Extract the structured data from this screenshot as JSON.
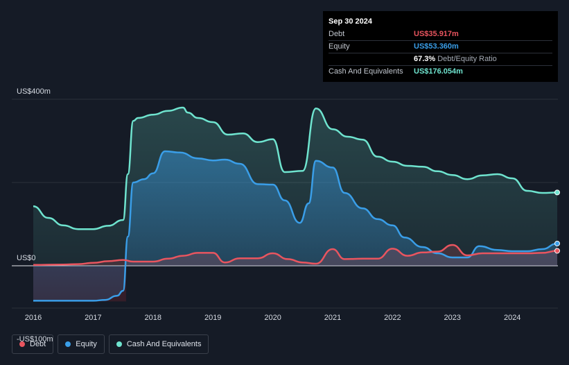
{
  "tooltip": {
    "date": "Sep 30 2024",
    "rows": [
      {
        "label": "Debt",
        "value": "US$35.917m",
        "color": "#e9555f"
      },
      {
        "label": "Equity",
        "value": "US$53.360m",
        "color": "#3a9ee8"
      },
      {
        "label": "",
        "value": "67.3%",
        "extra": "Debt/Equity Ratio",
        "color": "#ffffff"
      },
      {
        "label": "Cash And Equivalents",
        "value": "US$176.054m",
        "color": "#6fe4cf"
      }
    ]
  },
  "legend": [
    {
      "label": "Debt",
      "color": "#e9555f"
    },
    {
      "label": "Equity",
      "color": "#3a9ee8"
    },
    {
      "label": "Cash And Equivalents",
      "color": "#6fe4cf"
    }
  ],
  "chart_data": {
    "type": "area",
    "title": "",
    "xlabel": "",
    "ylabel": "",
    "unit": "US$m",
    "ylim": [
      -100,
      400
    ],
    "y_ticks": [
      {
        "value": 400,
        "label": "US$400m"
      },
      {
        "value": 0,
        "label": "US$0"
      },
      {
        "value": -100,
        "label": "-US$100m"
      }
    ],
    "x_ticks": [
      "2016",
      "2017",
      "2018",
      "2019",
      "2020",
      "2021",
      "2022",
      "2023",
      "2024"
    ],
    "xlim": [
      2016.0,
      2024.75
    ],
    "grid": true,
    "legend_position": "bottom-left",
    "series": [
      {
        "name": "Cash And Equivalents",
        "color": "#6fe4cf",
        "points": [
          [
            2016.0,
            143
          ],
          [
            2016.25,
            115
          ],
          [
            2016.5,
            97
          ],
          [
            2016.75,
            88
          ],
          [
            2017.0,
            88
          ],
          [
            2017.25,
            96
          ],
          [
            2017.5,
            110
          ],
          [
            2017.58,
            220
          ],
          [
            2017.67,
            348
          ],
          [
            2017.75,
            355
          ],
          [
            2018.0,
            363
          ],
          [
            2018.25,
            372
          ],
          [
            2018.5,
            380
          ],
          [
            2018.58,
            368
          ],
          [
            2018.75,
            355
          ],
          [
            2019.0,
            345
          ],
          [
            2019.25,
            315
          ],
          [
            2019.5,
            318
          ],
          [
            2019.75,
            297
          ],
          [
            2020.0,
            304
          ],
          [
            2020.2,
            225
          ],
          [
            2020.5,
            228
          ],
          [
            2020.72,
            378
          ],
          [
            2021.0,
            328
          ],
          [
            2021.25,
            310
          ],
          [
            2021.5,
            303
          ],
          [
            2021.75,
            262
          ],
          [
            2022.0,
            250
          ],
          [
            2022.25,
            240
          ],
          [
            2022.5,
            238
          ],
          [
            2022.75,
            227
          ],
          [
            2023.0,
            218
          ],
          [
            2023.25,
            208
          ],
          [
            2023.5,
            217
          ],
          [
            2023.75,
            220
          ],
          [
            2024.0,
            210
          ],
          [
            2024.25,
            180
          ],
          [
            2024.5,
            175
          ],
          [
            2024.75,
            176.054
          ]
        ]
      },
      {
        "name": "Equity",
        "color": "#3a9ee8",
        "points": [
          [
            2016.0,
            -84
          ],
          [
            2016.25,
            -84
          ],
          [
            2016.5,
            -84
          ],
          [
            2016.75,
            -84
          ],
          [
            2017.0,
            -84
          ],
          [
            2017.2,
            -82
          ],
          [
            2017.4,
            -72
          ],
          [
            2017.5,
            -60
          ],
          [
            2017.58,
            70
          ],
          [
            2017.67,
            200
          ],
          [
            2017.85,
            208
          ],
          [
            2018.0,
            222
          ],
          [
            2018.2,
            275
          ],
          [
            2018.45,
            272
          ],
          [
            2018.75,
            258
          ],
          [
            2019.0,
            253
          ],
          [
            2019.2,
            255
          ],
          [
            2019.45,
            245
          ],
          [
            2019.75,
            196
          ],
          [
            2020.0,
            195
          ],
          [
            2020.2,
            157
          ],
          [
            2020.45,
            103
          ],
          [
            2020.6,
            150
          ],
          [
            2020.72,
            252
          ],
          [
            2021.0,
            236
          ],
          [
            2021.2,
            175
          ],
          [
            2021.5,
            138
          ],
          [
            2021.75,
            112
          ],
          [
            2022.0,
            97
          ],
          [
            2022.2,
            68
          ],
          [
            2022.5,
            45
          ],
          [
            2022.75,
            30
          ],
          [
            2023.0,
            20
          ],
          [
            2023.25,
            20
          ],
          [
            2023.45,
            47
          ],
          [
            2023.75,
            38
          ],
          [
            2024.0,
            35
          ],
          [
            2024.25,
            35
          ],
          [
            2024.5,
            40
          ],
          [
            2024.75,
            53.36
          ]
        ]
      },
      {
        "name": "Debt",
        "color": "#e9555f",
        "points": [
          [
            2016.0,
            2
          ],
          [
            2016.5,
            3
          ],
          [
            2016.75,
            4
          ],
          [
            2017.0,
            7
          ],
          [
            2017.25,
            11
          ],
          [
            2017.5,
            14
          ],
          [
            2017.67,
            10
          ],
          [
            2018.0,
            10
          ],
          [
            2018.25,
            17
          ],
          [
            2018.5,
            24
          ],
          [
            2018.75,
            31
          ],
          [
            2019.0,
            31
          ],
          [
            2019.2,
            8
          ],
          [
            2019.45,
            18
          ],
          [
            2019.75,
            18
          ],
          [
            2020.0,
            30
          ],
          [
            2020.25,
            16
          ],
          [
            2020.5,
            8
          ],
          [
            2020.72,
            5
          ],
          [
            2021.0,
            40
          ],
          [
            2021.2,
            16
          ],
          [
            2021.5,
            17
          ],
          [
            2021.75,
            17
          ],
          [
            2022.0,
            41
          ],
          [
            2022.25,
            24
          ],
          [
            2022.5,
            32
          ],
          [
            2022.75,
            34
          ],
          [
            2023.0,
            50
          ],
          [
            2023.25,
            25
          ],
          [
            2023.5,
            30
          ],
          [
            2023.75,
            30
          ],
          [
            2024.0,
            30
          ],
          [
            2024.25,
            30
          ],
          [
            2024.5,
            31
          ],
          [
            2024.75,
            35.917
          ]
        ]
      }
    ]
  }
}
